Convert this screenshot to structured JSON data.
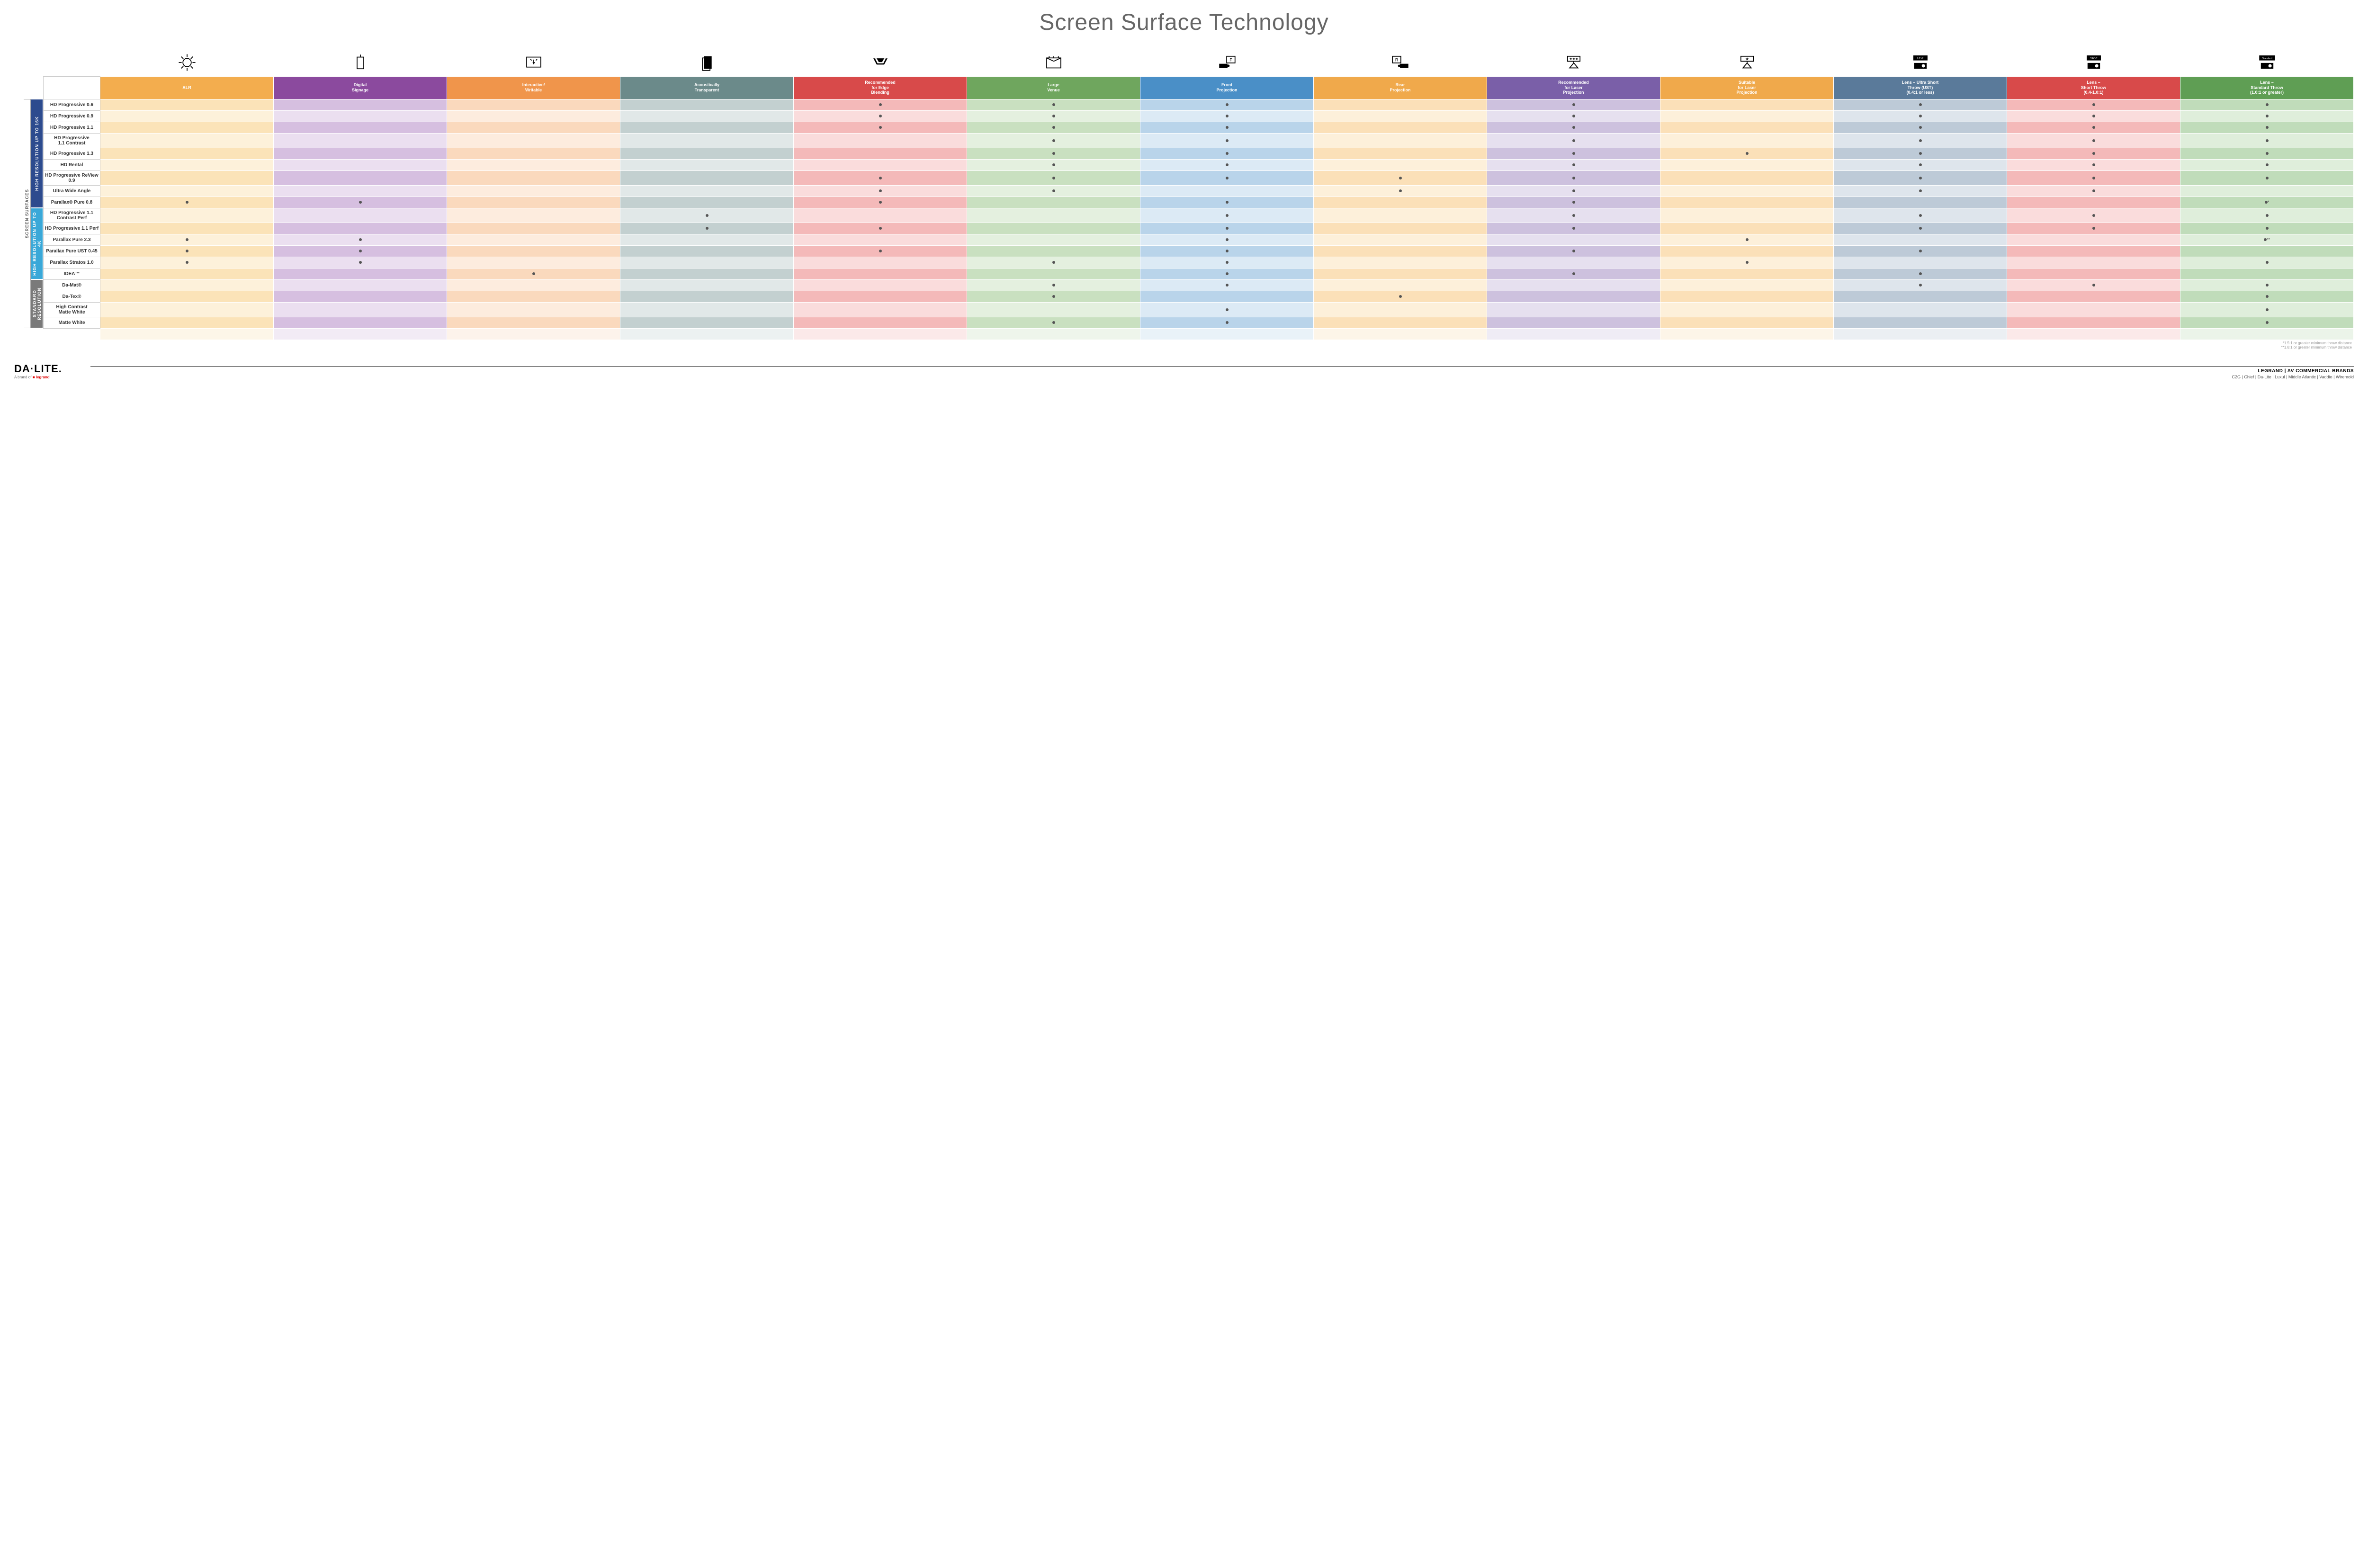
{
  "title": "Screen Surface Technology",
  "features_header": "FEATURES",
  "outer_group_label": "SCREEN SURFACES",
  "column_colors": {
    "base": [
      "#f3ad4e",
      "#8b4a9e",
      "#f0954b",
      "#6b8a8a",
      "#d84a4a",
      "#6fa65e",
      "#4a8fc7",
      "#f0a94b",
      "#7a5fa8",
      "#f0a94b",
      "#5a7a9a",
      "#d84a4a",
      "#5f9e54"
    ],
    "light": [
      "#fbe3b8",
      "#d6bfe0",
      "#fad9bd",
      "#c3d0d0",
      "#f4b9b9",
      "#c9e0c0",
      "#b9d4ea",
      "#fbe0b8",
      "#cdc1de",
      "#fbe0b8",
      "#bdcad7",
      "#f4b9b9",
      "#c0dcba"
    ],
    "lighter": [
      "#fdf1da",
      "#ebdff0",
      "#fdecde",
      "#e1e8e8",
      "#fadcdc",
      "#e4f0df",
      "#dceaf5",
      "#fdf0da",
      "#e6e0ef",
      "#fdf0da",
      "#deE5ec",
      "#fadcdc",
      "#dfeeDB"
    ]
  },
  "columns": [
    {
      "label": "ALR",
      "icon": "bulb"
    },
    {
      "label": "Digital\nSignage",
      "icon": "signage"
    },
    {
      "label": "Interactive/\nWritable",
      "icon": "touch"
    },
    {
      "label": "Acoustically\nTransparent",
      "icon": "speaker"
    },
    {
      "label": "Recommended\nfor Edge\nBlending",
      "icon": "blend"
    },
    {
      "label": "Large\nVenue",
      "icon": "venue"
    },
    {
      "label": "Front\nProjection",
      "icon": "front"
    },
    {
      "label": "Rear\nProjection",
      "icon": "rear"
    },
    {
      "label": "Recommended\nfor Laser\nProjection",
      "icon": "laser3"
    },
    {
      "label": "Suitable\nfor Laser\nProjection",
      "icon": "laser1"
    },
    {
      "label": "Lens – Ultra Short\nThrow (UST)\n(0.4:1 or less)",
      "icon": "ust"
    },
    {
      "label": "Lens –\nShort Throw\n(0.4-1.0:1)",
      "icon": "short"
    },
    {
      "label": "Lens –\nStandard Throw\n(1.0:1 or greater)",
      "icon": "standard"
    }
  ],
  "groups": [
    {
      "label": "HIGH RESOLUTION UP TO 16K",
      "color": "#2d4b8e",
      "rows": 9
    },
    {
      "label": "HIGH RESOLUTION UP TO 4K",
      "color": "#3aa8d8",
      "rows": 6
    },
    {
      "label": "STANDARD\nRESOLUTION",
      "color": "#7a7a7a",
      "rows": 4
    }
  ],
  "rows": [
    {
      "name": "HD Progressive 0.6",
      "dots": [
        0,
        0,
        0,
        0,
        1,
        1,
        1,
        0,
        1,
        0,
        1,
        1,
        1
      ]
    },
    {
      "name": "HD Progressive 0.9",
      "dots": [
        0,
        0,
        0,
        0,
        1,
        1,
        1,
        0,
        1,
        0,
        1,
        1,
        1
      ]
    },
    {
      "name": "HD Progressive 1.1",
      "dots": [
        0,
        0,
        0,
        0,
        1,
        1,
        1,
        0,
        1,
        0,
        1,
        1,
        1
      ]
    },
    {
      "name": "HD Progressive\n1.1 Contrast",
      "dots": [
        0,
        0,
        0,
        0,
        0,
        1,
        1,
        0,
        1,
        0,
        1,
        1,
        1
      ]
    },
    {
      "name": "HD Progressive 1.3",
      "dots": [
        0,
        0,
        0,
        0,
        0,
        1,
        1,
        0,
        1,
        1,
        1,
        1,
        1
      ]
    },
    {
      "name": "HD Rental",
      "dots": [
        0,
        0,
        0,
        0,
        0,
        1,
        1,
        0,
        1,
        0,
        1,
        1,
        1
      ]
    },
    {
      "name": "HD Progressive ReView 0.9",
      "dots": [
        0,
        0,
        0,
        0,
        1,
        1,
        1,
        1,
        1,
        0,
        1,
        1,
        1
      ]
    },
    {
      "name": "Ultra Wide Angle",
      "dots": [
        0,
        0,
        0,
        0,
        1,
        1,
        0,
        1,
        1,
        0,
        1,
        1,
        0
      ]
    },
    {
      "name": "Parallax® Pure 0.8",
      "dots": [
        1,
        1,
        0,
        0,
        1,
        0,
        1,
        0,
        1,
        0,
        0,
        0,
        "•*"
      ]
    },
    {
      "name": "HD Progressive 1.1\nContrast Perf",
      "dots": [
        0,
        0,
        0,
        1,
        0,
        0,
        1,
        0,
        1,
        0,
        1,
        1,
        1
      ]
    },
    {
      "name": "HD Progressive 1.1 Perf",
      "dots": [
        0,
        0,
        0,
        1,
        1,
        0,
        1,
        0,
        1,
        0,
        1,
        1,
        1
      ]
    },
    {
      "name": "Parallax Pure 2.3",
      "dots": [
        1,
        1,
        0,
        0,
        0,
        0,
        1,
        0,
        0,
        1,
        0,
        0,
        "•**"
      ]
    },
    {
      "name": "Parallax Pure UST 0.45",
      "dots": [
        1,
        1,
        0,
        0,
        1,
        0,
        1,
        0,
        1,
        0,
        1,
        0,
        0
      ]
    },
    {
      "name": "Parallax Stratos 1.0",
      "dots": [
        1,
        1,
        0,
        0,
        0,
        1,
        1,
        0,
        0,
        1,
        0,
        0,
        1
      ]
    },
    {
      "name": "IDEA™",
      "dots": [
        0,
        0,
        1,
        0,
        0,
        0,
        1,
        0,
        1,
        0,
        1,
        0,
        0
      ]
    },
    {
      "name": "Da-Mat®",
      "dots": [
        0,
        0,
        0,
        0,
        0,
        1,
        1,
        0,
        0,
        0,
        1,
        1,
        1
      ]
    },
    {
      "name": "Da-Tex®",
      "dots": [
        0,
        0,
        0,
        0,
        0,
        1,
        0,
        1,
        0,
        0,
        0,
        0,
        1
      ]
    },
    {
      "name": "High Contrast\nMatte White",
      "dots": [
        0,
        0,
        0,
        0,
        0,
        0,
        1,
        0,
        0,
        0,
        0,
        0,
        1
      ]
    },
    {
      "name": "Matte White",
      "dots": [
        0,
        0,
        0,
        0,
        0,
        1,
        1,
        0,
        0,
        0,
        0,
        0,
        1
      ]
    }
  ],
  "footnotes": [
    "*1.5:1 or greater minimum throw distance",
    "**1.8:1 or greater minimum throw distance"
  ],
  "footer": {
    "logo": "DA·LITE.",
    "logo_sub_prefix": "A brand of ",
    "logo_sub_brand": "legrand",
    "brands_title": "LEGRAND | AV COMMERCIAL BRANDS",
    "brands": [
      "C2G",
      "Chief",
      "Da-Lite",
      "Luxul",
      "Middle Atlantic",
      "Vaddio",
      "Wiremold"
    ]
  }
}
